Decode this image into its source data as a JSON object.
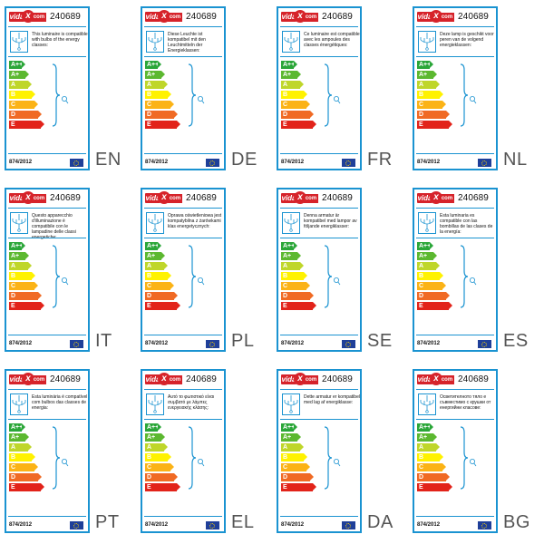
{
  "brand": {
    "vida": "vida",
    "x": "x",
    "com": "com"
  },
  "product_code": "240689",
  "regulation": "874/2012",
  "scale_classes": [
    {
      "label": "A++",
      "color": "#2aa638"
    },
    {
      "label": "A+",
      "color": "#5cb830"
    },
    {
      "label": "A",
      "color": "#bfd62a"
    },
    {
      "label": "B",
      "color": "#fff200"
    },
    {
      "label": "C",
      "color": "#fbb316"
    },
    {
      "label": "D",
      "color": "#f06a24"
    },
    {
      "label": "E",
      "color": "#e2231a"
    }
  ],
  "labels": [
    {
      "lang": "EN",
      "text": "This luminaire is compatible with bulbs of the energy classes:"
    },
    {
      "lang": "DE",
      "text": "Diese Leuchte ist kompatibel mit den Leuchtmitteln der Energieklassen:"
    },
    {
      "lang": "FR",
      "text": "Ce luminaire est compatible avec les ampoules des classes énergétiques:"
    },
    {
      "lang": "NL",
      "text": "Deze lamp is geschikt voor peren van de volgend energieklassen:"
    },
    {
      "lang": "IT",
      "text": "Questo apparecchio d'illuminazione è compatibile con le lampadine delle classi energetiche:"
    },
    {
      "lang": "PL",
      "text": "Oprawa oświetleniowa jest kompatybilna z żarówkami klas energetycznych:"
    },
    {
      "lang": "SE",
      "text": "Denna armatur är kompatibel med lampor av följande energiklasser:"
    },
    {
      "lang": "ES",
      "text": "Esta luminaria es compatible con las bombillas de las clases de la energía:"
    },
    {
      "lang": "PT",
      "text": "Esta luminária é compatível com bulbos das classes de energia:"
    },
    {
      "lang": "EL",
      "text": "Αυτό το φωτιστικό είναι συμβατό με λάμπες ενεργειακής κλάσης:"
    },
    {
      "lang": "DA",
      "text": "Dette armatur er kompatibel med lag af energiklasse:"
    },
    {
      "lang": "BG",
      "text": "Осветителното тяло е съвместимо с крушки от енергийни класове:"
    }
  ]
}
